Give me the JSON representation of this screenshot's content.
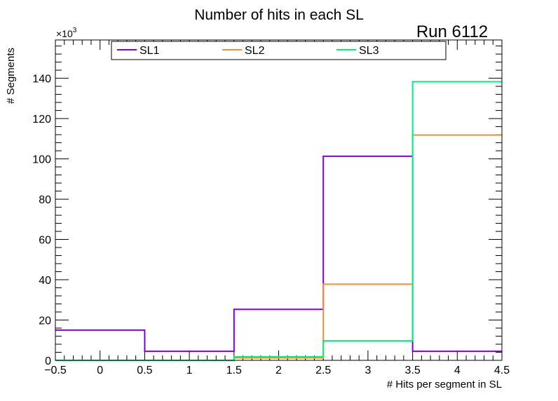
{
  "chart_data": {
    "type": "histogram",
    "title": "Number of hits in each SL",
    "run_label": "Run 6112",
    "xlabel": "# Hits per segment in SL",
    "ylabel": "# Segments",
    "y_multiplier_base": "×10",
    "y_multiplier_exp": "3",
    "xlim": [
      -0.5,
      4.5
    ],
    "ylim": [
      0,
      159
    ],
    "x_ticks": [
      -0.5,
      0,
      0.5,
      1,
      1.5,
      2,
      2.5,
      3,
      3.5,
      4,
      4.5
    ],
    "x_tick_labels": [
      "−0.5",
      "0",
      "0.5",
      "1",
      "1.5",
      "2",
      "2.5",
      "3",
      "3.5",
      "4",
      "4.5"
    ],
    "y_ticks": [
      0,
      20,
      40,
      60,
      80,
      100,
      120,
      140
    ],
    "y_tick_labels": [
      "0",
      "20",
      "40",
      "60",
      "80",
      "100",
      "120",
      "140"
    ],
    "bin_edges": [
      -0.5,
      0.5,
      1.5,
      2.5,
      3.5,
      4.5
    ],
    "series": [
      {
        "name": "SL1",
        "color": "#8000e0",
        "values": [
          15,
          4.5,
          25.3,
          101.3,
          4.5
        ]
      },
      {
        "name": "SL2",
        "color": "#f09030",
        "values": [
          0,
          0,
          1.2,
          37.8,
          111.8
        ]
      },
      {
        "name": "SL3",
        "color": "#00f080",
        "values": [
          0,
          0,
          1.8,
          9.7,
          138.3
        ]
      }
    ],
    "legend": {
      "position": "top"
    }
  }
}
